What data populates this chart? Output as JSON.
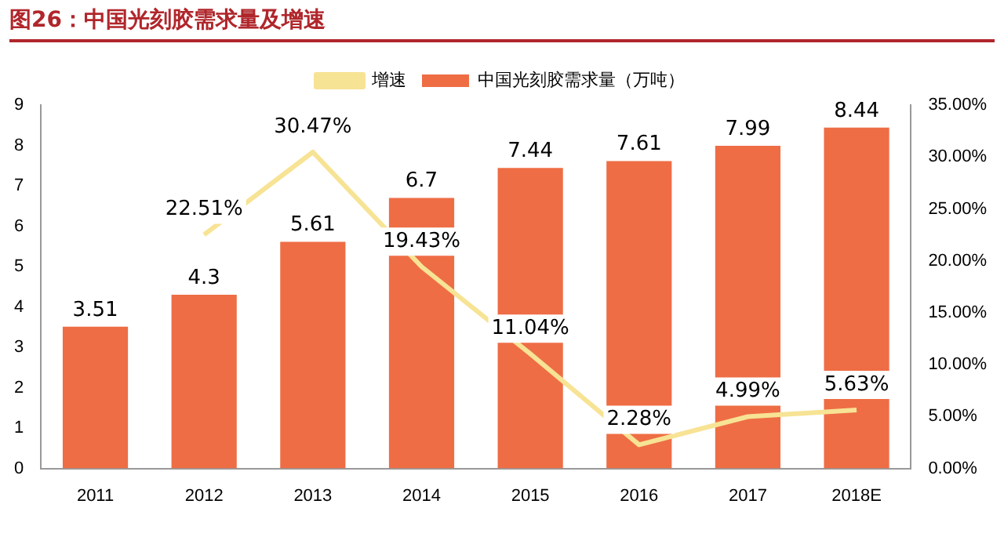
{
  "chart_data": {
    "type": "bar",
    "title": "图26：中国光刻胶需求量及增速",
    "categories": [
      "2011",
      "2012",
      "2013",
      "2014",
      "2015",
      "2016",
      "2017",
      "2018E"
    ],
    "series": [
      {
        "name": "中国光刻胶需求量（万吨）",
        "color": "#ee6d45",
        "values": [
          3.51,
          4.3,
          5.61,
          6.7,
          7.44,
          7.61,
          7.99,
          8.44
        ]
      },
      {
        "name": "增速",
        "type": "line",
        "axis": "y2",
        "color": "#f7e394",
        "values": [
          null,
          22.51,
          30.47,
          19.43,
          11.04,
          2.28,
          4.99,
          5.63
        ],
        "value_labels": [
          null,
          "22.51%",
          "30.47%",
          "19.43%",
          "11.04%",
          "2.28%",
          "4.99%",
          "5.63%"
        ]
      }
    ],
    "ylim": [
      0,
      9
    ],
    "yticks": [
      0,
      1,
      2,
      3,
      4,
      5,
      6,
      7,
      8,
      9
    ],
    "y2lim": [
      0,
      35
    ],
    "y2ticks": [
      {
        "value": 0,
        "label": "0.00%"
      },
      {
        "value": 5,
        "label": "5.00%"
      },
      {
        "value": 10,
        "label": "10.00%"
      },
      {
        "value": 15,
        "label": "15.00%"
      },
      {
        "value": 20,
        "label": "20.00%"
      },
      {
        "value": 25,
        "label": "25.00%"
      },
      {
        "value": 30,
        "label": "30.00%"
      },
      {
        "value": 35,
        "label": "35.00%"
      }
    ],
    "data_labels": true,
    "legend": "top",
    "grid": false,
    "marker": "none"
  }
}
